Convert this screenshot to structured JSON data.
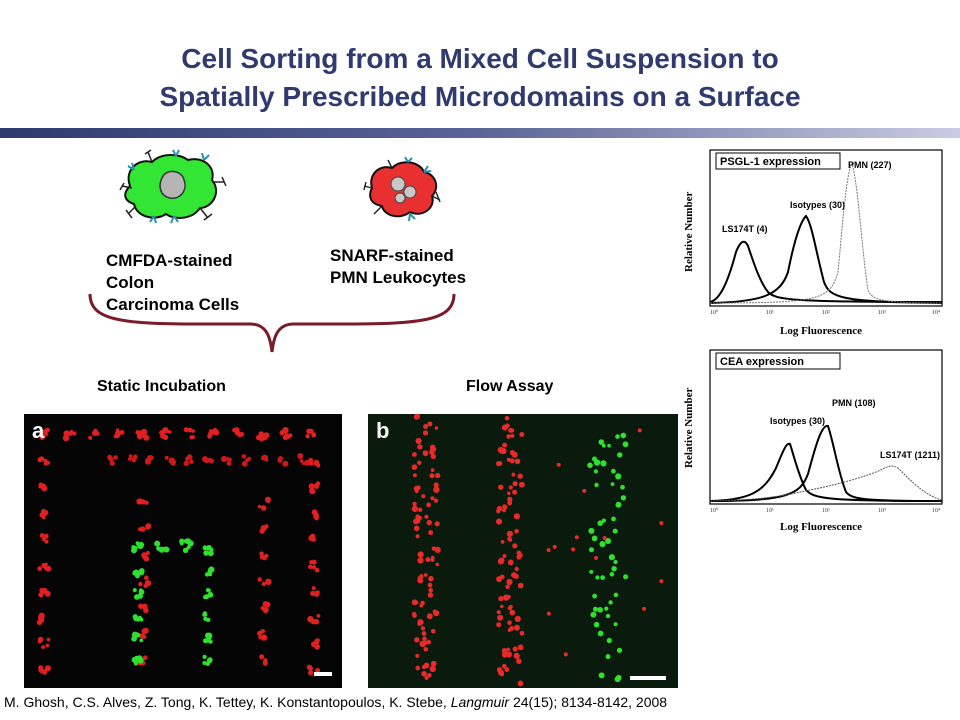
{
  "title": {
    "line1": "Cell Sorting from a Mixed Cell Suspension to",
    "line2": "Spatially Prescribed Microdomains on a Surface"
  },
  "cells": {
    "colon": [
      "CMFDA-stained",
      "Colon",
      "Carcinoma Cells"
    ],
    "pmn": [
      "SNARF-stained",
      "PMN Leukocytes"
    ]
  },
  "panels": {
    "static_label": "Static Incubation",
    "flow_label": "Flow Assay",
    "a_tag": "a",
    "b_tag": "b"
  },
  "histograms": [
    {
      "box_label": "PSGL-1 expression",
      "ylabel": "Relative Number",
      "xlabel": "Log Fluorescence",
      "peaks": [
        {
          "label": "LS174T (4)"
        },
        {
          "label": "Isotypes (30)"
        },
        {
          "label": "PMN (227)"
        }
      ]
    },
    {
      "box_label": "CEA expression",
      "ylabel": "Relative Number",
      "xlabel": "Log Fluorescence",
      "peaks": [
        {
          "label": "Isotypes (30)"
        },
        {
          "label": "PMN (108)"
        },
        {
          "label": "LS174T (1211)"
        }
      ]
    }
  ],
  "reference": {
    "authors": "M. Ghosh, C.S. Alves, Z. Tong, K. Tettey, K. Konstantopoulos, K. Stebe,",
    "journal": "Langmuir",
    "details": "24(15); 8134-8142, 2008"
  }
}
